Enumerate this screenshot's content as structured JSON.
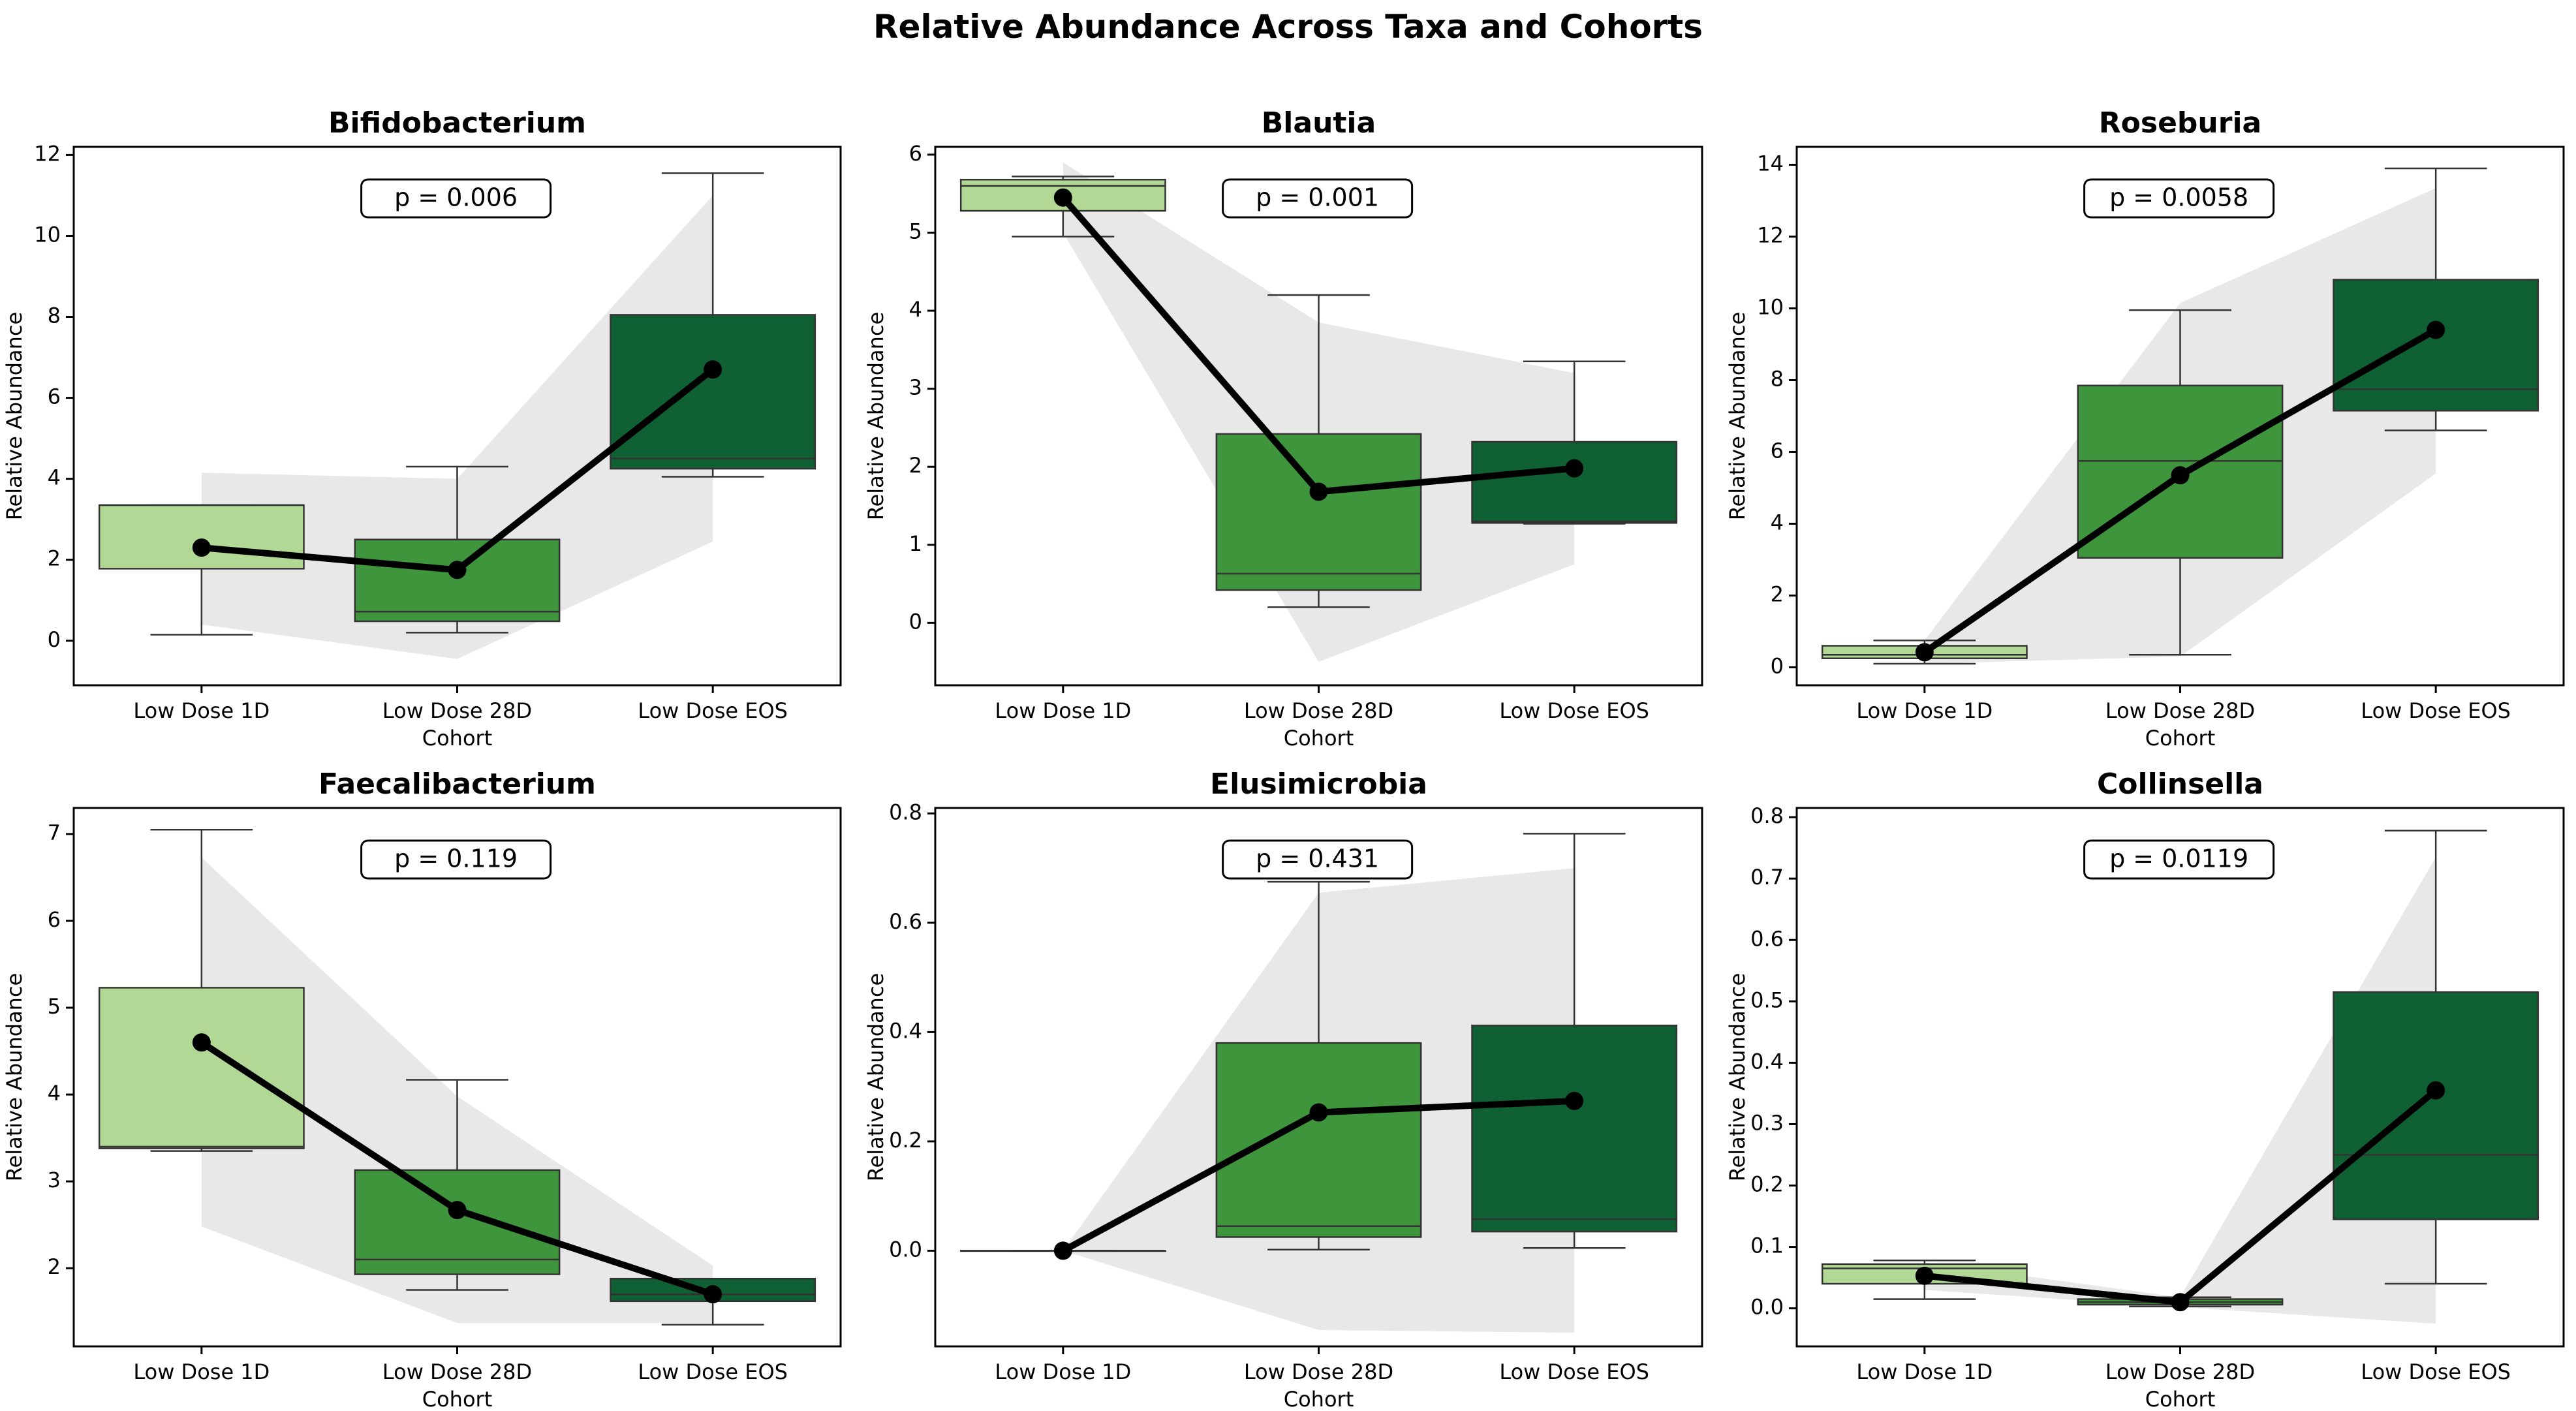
{
  "title": "Relative Abundance Across Taxa and Cohorts",
  "colors": {
    "Low Dose 1D": "#b2d896",
    "Low Dose 28D": "#3f953b",
    "Low Dose EOS": "#0f6032",
    "band": "#d9d9d9",
    "mean_line": "#000000"
  },
  "chart_data": [
    {
      "type": "box",
      "title": "Bifidobacterium",
      "xlabel": "Cohort",
      "ylabel": "Relative Abundance",
      "categories": [
        "Low Dose 1D",
        "Low Dose 28D",
        "Low Dose EOS"
      ],
      "ylim": [
        -1.1,
        12.2
      ],
      "yticks": [
        0,
        2,
        4,
        6,
        8,
        10,
        12
      ],
      "tick_labels": [
        "0",
        "2",
        "4",
        "6",
        "8",
        "10",
        "12"
      ],
      "p_value": "p = 0.006",
      "boxes": [
        {
          "q1": 1.78,
          "median": 3.35,
          "q3": 3.35,
          "whisker_low": 0.15,
          "whisker_high": 3.35
        },
        {
          "q1": 0.48,
          "median": 0.72,
          "q3": 2.5,
          "whisker_low": 0.2,
          "whisker_high": 4.3
        },
        {
          "q1": 4.25,
          "median": 4.5,
          "q3": 8.05,
          "whisker_low": 4.05,
          "whisker_high": 11.55
        }
      ],
      "means": [
        2.3,
        1.75,
        6.7
      ],
      "band_lower": [
        0.4,
        -0.45,
        2.45
      ],
      "band_upper": [
        4.15,
        4.0,
        11.0
      ]
    },
    {
      "type": "box",
      "title": "Blautia",
      "xlabel": "Cohort",
      "ylabel": "Relative Abundance",
      "categories": [
        "Low Dose 1D",
        "Low Dose 28D",
        "Low Dose EOS"
      ],
      "ylim": [
        -0.8,
        6.1
      ],
      "yticks": [
        0,
        1,
        2,
        3,
        4,
        5,
        6
      ],
      "tick_labels": [
        "0",
        "1",
        "2",
        "3",
        "4",
        "5",
        "6"
      ],
      "p_value": "p = 0.001",
      "boxes": [
        {
          "q1": 5.28,
          "median": 5.6,
          "q3": 5.68,
          "whisker_low": 4.95,
          "whisker_high": 5.72
        },
        {
          "q1": 0.42,
          "median": 0.63,
          "q3": 2.42,
          "whisker_low": 0.2,
          "whisker_high": 4.2
        },
        {
          "q1": 1.28,
          "median": 1.3,
          "q3": 2.32,
          "whisker_low": 1.27,
          "whisker_high": 3.35
        }
      ],
      "means": [
        5.45,
        1.68,
        1.98
      ],
      "band_lower": [
        5.0,
        -0.5,
        0.75
      ],
      "band_upper": [
        5.9,
        3.85,
        3.2
      ]
    },
    {
      "type": "box",
      "title": "Roseburia",
      "xlabel": "Cohort",
      "ylabel": "Relative Abundance",
      "categories": [
        "Low Dose 1D",
        "Low Dose 28D",
        "Low Dose EOS"
      ],
      "ylim": [
        -0.5,
        14.5
      ],
      "yticks": [
        0,
        2,
        4,
        6,
        8,
        10,
        12,
        14
      ],
      "tick_labels": [
        "0",
        "2",
        "4",
        "6",
        "8",
        "10",
        "12",
        "14"
      ],
      "p_value": "p = 0.0058",
      "boxes": [
        {
          "q1": 0.25,
          "median": 0.35,
          "q3": 0.6,
          "whisker_low": 0.1,
          "whisker_high": 0.75
        },
        {
          "q1": 3.05,
          "median": 5.75,
          "q3": 7.85,
          "whisker_low": 0.35,
          "whisker_high": 9.95
        },
        {
          "q1": 7.15,
          "median": 7.75,
          "q3": 10.8,
          "whisker_low": 6.6,
          "whisker_high": 13.9
        }
      ],
      "means": [
        0.42,
        5.35,
        9.4
      ],
      "band_lower": [
        0.1,
        0.3,
        5.4
      ],
      "band_upper": [
        0.75,
        10.15,
        13.35
      ]
    },
    {
      "type": "box",
      "title": "Faecalibacterium",
      "xlabel": "Cohort",
      "ylabel": "Relative Abundance",
      "categories": [
        "Low Dose 1D",
        "Low Dose 28D",
        "Low Dose EOS"
      ],
      "ylim": [
        1.1,
        7.3
      ],
      "yticks": [
        2,
        3,
        4,
        5,
        6,
        7
      ],
      "tick_labels": [
        "2",
        "3",
        "4",
        "5",
        "6",
        "7"
      ],
      "p_value": "p = 0.119",
      "boxes": [
        {
          "q1": 3.38,
          "median": 3.4,
          "q3": 5.23,
          "whisker_low": 3.35,
          "whisker_high": 7.05
        },
        {
          "q1": 1.93,
          "median": 2.1,
          "q3": 3.13,
          "whisker_low": 1.75,
          "whisker_high": 4.17
        },
        {
          "q1": 1.62,
          "median": 1.7,
          "q3": 1.88,
          "whisker_low": 1.35,
          "whisker_high": 1.88
        }
      ],
      "means": [
        4.6,
        2.67,
        1.7
      ],
      "band_lower": [
        2.48,
        1.37,
        1.37
      ],
      "band_upper": [
        6.73,
        3.98,
        2.03
      ]
    },
    {
      "type": "box",
      "title": "Elusimicrobia",
      "xlabel": "Cohort",
      "ylabel": "Relative Abundance",
      "categories": [
        "Low Dose 1D",
        "Low Dose 28D",
        "Low Dose EOS"
      ],
      "ylim": [
        -0.175,
        0.81
      ],
      "yticks": [
        0.0,
        0.2,
        0.4,
        0.6,
        0.8
      ],
      "tick_labels": [
        "0.0",
        "0.2",
        "0.4",
        "0.6",
        "0.8"
      ],
      "p_value": "p = 0.431",
      "boxes": [
        {
          "q1": 0.0,
          "median": 0.0,
          "q3": 0.0,
          "whisker_low": 0.0,
          "whisker_high": 0.0
        },
        {
          "q1": 0.025,
          "median": 0.045,
          "q3": 0.38,
          "whisker_low": 0.002,
          "whisker_high": 0.675
        },
        {
          "q1": 0.035,
          "median": 0.058,
          "q3": 0.412,
          "whisker_low": 0.005,
          "whisker_high": 0.763
        }
      ],
      "means": [
        0.0,
        0.253,
        0.274
      ],
      "band_lower": [
        0.0,
        -0.145,
        -0.15
      ],
      "band_upper": [
        0.0,
        0.655,
        0.7
      ]
    },
    {
      "type": "box",
      "title": "Collinsella",
      "xlabel": "Cohort",
      "ylabel": "Relative Abundance",
      "categories": [
        "Low Dose 1D",
        "Low Dose 28D",
        "Low Dose EOS"
      ],
      "ylim": [
        -0.062,
        0.815
      ],
      "yticks": [
        0.0,
        0.1,
        0.2,
        0.3,
        0.4,
        0.5,
        0.6,
        0.7,
        0.8
      ],
      "tick_labels": [
        "0.0",
        "0.1",
        "0.2",
        "0.3",
        "0.4",
        "0.5",
        "0.6",
        "0.7",
        "0.8"
      ],
      "p_value": "p = 0.0119",
      "boxes": [
        {
          "q1": 0.04,
          "median": 0.065,
          "q3": 0.072,
          "whisker_low": 0.015,
          "whisker_high": 0.078
        },
        {
          "q1": 0.006,
          "median": 0.01,
          "q3": 0.015,
          "whisker_low": 0.003,
          "whisker_high": 0.018
        },
        {
          "q1": 0.145,
          "median": 0.25,
          "q3": 0.515,
          "whisker_low": 0.04,
          "whisker_high": 0.778
        }
      ],
      "means": [
        0.053,
        0.01,
        0.355
      ],
      "band_lower": [
        0.03,
        0.002,
        -0.025
      ],
      "band_upper": [
        0.075,
        0.018,
        0.735
      ]
    }
  ]
}
